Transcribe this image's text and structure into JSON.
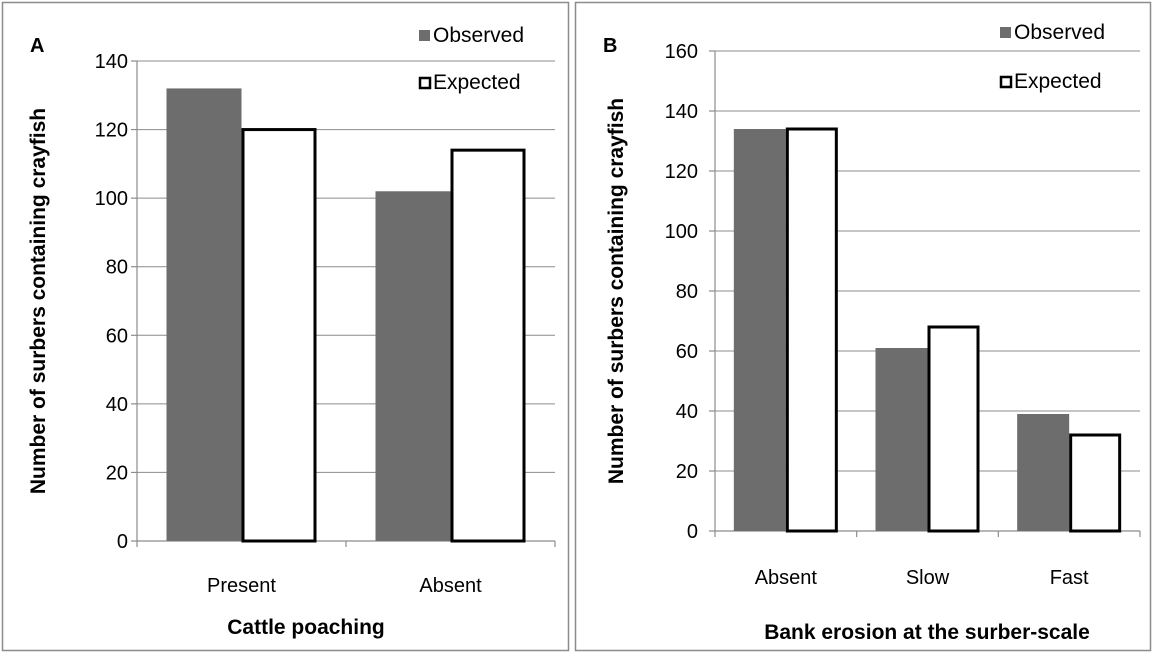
{
  "chart_data": [
    {
      "type": "bar",
      "panel_label": "A",
      "categories": [
        "Present",
        "Absent"
      ],
      "series": [
        {
          "name": "Observed",
          "values": [
            132,
            102
          ]
        },
        {
          "name": "Expected",
          "values": [
            120,
            114
          ]
        }
      ],
      "xlabel": "Cattle poaching",
      "ylabel": "Number of surbers containing crayfish",
      "ylim": [
        0,
        140
      ],
      "yticks": [
        0,
        20,
        40,
        60,
        80,
        100,
        120,
        140
      ],
      "grid": true,
      "legend": "top-right",
      "colors": {
        "Observed": "#6d6d6d",
        "Expected": "#ffffff"
      }
    },
    {
      "type": "bar",
      "panel_label": "B",
      "categories": [
        "Absent",
        "Slow",
        "Fast"
      ],
      "series": [
        {
          "name": "Observed",
          "values": [
            134,
            61,
            39
          ]
        },
        {
          "name": "Expected",
          "values": [
            134,
            68,
            32
          ]
        }
      ],
      "xlabel": "Bank erosion at the surber-scale",
      "ylabel": "Number of surbers containing crayfish",
      "ylim": [
        0,
        160
      ],
      "yticks": [
        0,
        20,
        40,
        60,
        80,
        100,
        120,
        140,
        160
      ],
      "grid": true,
      "legend": "top-right",
      "colors": {
        "Observed": "#6d6d6d",
        "Expected": "#ffffff"
      }
    }
  ]
}
